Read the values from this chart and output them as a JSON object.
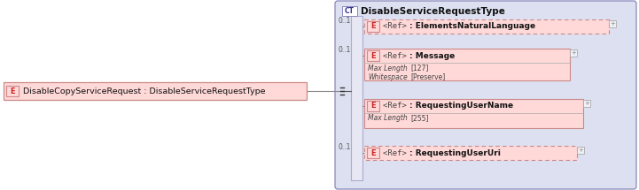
{
  "bg_color": "#ffffff",
  "ct_box_fill": "#dde0f0",
  "ct_box_stroke": "#8888bb",
  "element_fill": "#ffd8d8",
  "element_stroke": "#cc8888",
  "seq_bar_fill": "#e8e8f4",
  "seq_bar_stroke": "#aaaacc",
  "connector_color": "#888888",
  "left_box_title": "DisableCopyServiceRequest : DisableServiceRequestType",
  "ct_title": "DisableServiceRequestType",
  "elements": [
    {
      "label_pre": "<Ref>",
      "label_post": ": ElementsNaturalLanguage",
      "cardinality": "0..1",
      "dashed": true,
      "details": []
    },
    {
      "label_pre": "<Ref>",
      "label_post": ": Message",
      "cardinality": "0..1",
      "dashed": false,
      "details": [
        {
          "key": "Max Length",
          "val": "[127]"
        },
        {
          "key": "Whitespace",
          "val": "[Preserve]"
        }
      ]
    },
    {
      "label_pre": "<Ref>",
      "label_post": ": RequestingUserName",
      "cardinality": "",
      "dashed": false,
      "details": [
        {
          "key": "Max Length",
          "val": "[255]"
        }
      ]
    },
    {
      "label_pre": "<Ref>",
      "label_post": ": RequestingUserUri",
      "cardinality": "0..1",
      "dashed": true,
      "details": []
    }
  ]
}
